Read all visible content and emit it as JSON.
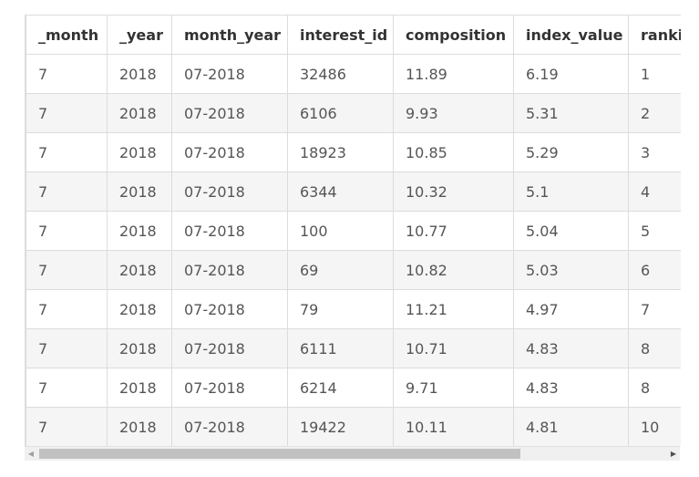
{
  "table": {
    "columns": [
      "_month",
      "_year",
      "month_year",
      "interest_id",
      "composition",
      "index_value",
      "ranking"
    ],
    "rows": [
      [
        "7",
        "2018",
        "07-2018",
        "32486",
        "11.89",
        "6.19",
        "1"
      ],
      [
        "7",
        "2018",
        "07-2018",
        "6106",
        "9.93",
        "5.31",
        "2"
      ],
      [
        "7",
        "2018",
        "07-2018",
        "18923",
        "10.85",
        "5.29",
        "3"
      ],
      [
        "7",
        "2018",
        "07-2018",
        "6344",
        "10.32",
        "5.1",
        "4"
      ],
      [
        "7",
        "2018",
        "07-2018",
        "100",
        "10.77",
        "5.04",
        "5"
      ],
      [
        "7",
        "2018",
        "07-2018",
        "69",
        "10.82",
        "5.03",
        "6"
      ],
      [
        "7",
        "2018",
        "07-2018",
        "79",
        "11.21",
        "4.97",
        "7"
      ],
      [
        "7",
        "2018",
        "07-2018",
        "6111",
        "10.71",
        "4.83",
        "8"
      ],
      [
        "7",
        "2018",
        "07-2018",
        "6214",
        "9.71",
        "4.83",
        "8"
      ],
      [
        "7",
        "2018",
        "07-2018",
        "19422",
        "10.11",
        "4.81",
        "10"
      ]
    ]
  },
  "scrollbar": {
    "left_arrow_icon": "triangle-left-icon",
    "right_arrow_icon": "triangle-right-icon",
    "left_arrow_glyph": "◀",
    "right_arrow_glyph": "▶"
  }
}
